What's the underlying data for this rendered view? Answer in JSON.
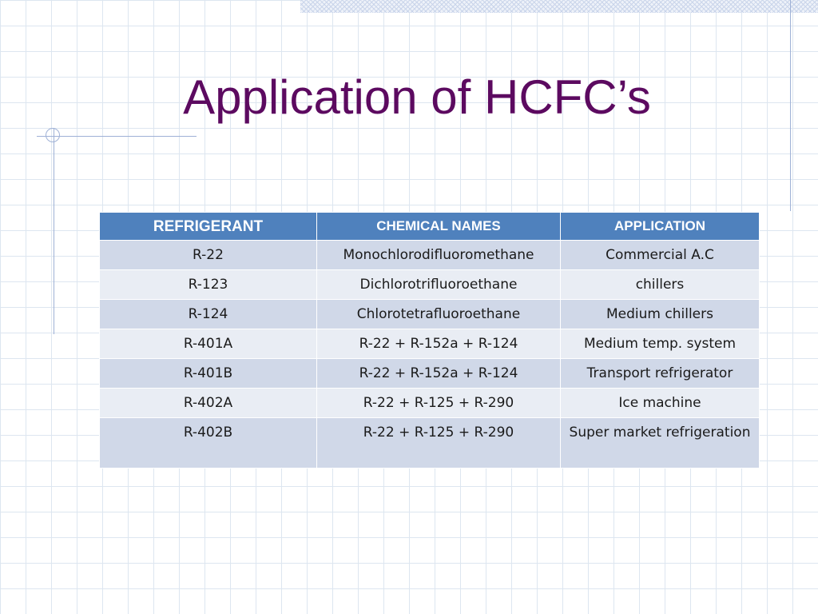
{
  "slide": {
    "title": "Application of HCFC’s"
  },
  "table": {
    "headers": [
      "REFRIGERANT",
      "CHEMICAL NAMES",
      "APPLICATION"
    ],
    "rows": [
      [
        "R-22",
        "Monochlorodifluoromethane",
        "Commercial A.C"
      ],
      [
        "R-123",
        "Dichlorotrifluoroethane",
        "chillers"
      ],
      [
        "R-124",
        "Chlorotetrafluoroethane",
        "Medium chillers"
      ],
      [
        "R-401A",
        "R-22 + R-152a + R-124",
        "Medium temp. system"
      ],
      [
        "R-401B",
        "R-22 + R-152a + R-124",
        "Transport refrigerator"
      ],
      [
        "R-402A",
        "R-22 + R-125 + R-290",
        "Ice machine"
      ],
      [
        "R-402B",
        "R-22 + R-125 + R-290",
        "Super market refrigeration"
      ]
    ]
  },
  "colors": {
    "title": "#5c0a60",
    "header_bg": "#4f81bd",
    "row_odd": "#d0d8e8",
    "row_even": "#e9edf4"
  }
}
